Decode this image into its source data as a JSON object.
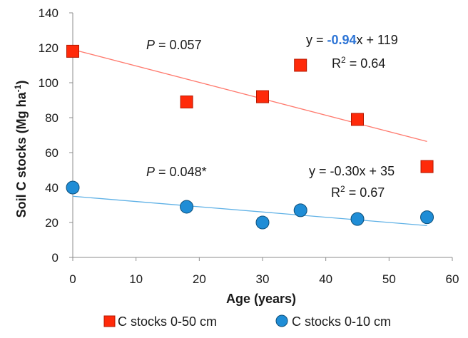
{
  "chart_data": {
    "type": "scatter",
    "xlabel": "Age (years)",
    "ylabel": "Soil C stocks (Mg ha",
    "ylabel_superscript": "-1",
    "ylabel_close": ")",
    "xlim": [
      0,
      60
    ],
    "ylim": [
      0,
      140
    ],
    "x_ticks": [
      0,
      10,
      20,
      30,
      40,
      50,
      60
    ],
    "y_ticks": [
      0,
      20,
      40,
      60,
      80,
      100,
      120,
      140
    ],
    "grid": false,
    "legend_position": "bottom",
    "series": [
      {
        "name": "C stocks 0-50 cm",
        "marker": "square",
        "color": "#ff2a0a",
        "trend_color": "#ff7a6e",
        "x": [
          0,
          18,
          30,
          36,
          45,
          56
        ],
        "y": [
          118,
          89,
          92,
          110,
          79,
          52
        ],
        "trend": {
          "slope": -0.94,
          "intercept": 119
        },
        "p_prefix": "P",
        "p_text": " = 0.057",
        "eq_prefix": "y = ",
        "eq_slope": "-0.94",
        "eq_suffix": "x + 119",
        "r2_prefix": "R",
        "r2_sup": "2",
        "r2_text": " = 0.64"
      },
      {
        "name": "C stocks 0-10 cm",
        "marker": "circle",
        "color": "#1f8dd6",
        "trend_color": "#5fb1e6",
        "x": [
          0,
          18,
          30,
          36,
          45,
          56
        ],
        "y": [
          40,
          29,
          20,
          27,
          22,
          23
        ],
        "trend": {
          "slope": -0.3,
          "intercept": 35
        },
        "p_prefix": "P",
        "p_text": " = 0.048*",
        "eq_text": "y = -0.30x + 35",
        "r2_prefix": "R",
        "r2_sup": "2",
        "r2_text": " = 0.67"
      }
    ],
    "colors": {
      "axis": "#8c8c8c",
      "text": "#1a1a1a",
      "slope_highlight": "#2e75d6"
    }
  }
}
